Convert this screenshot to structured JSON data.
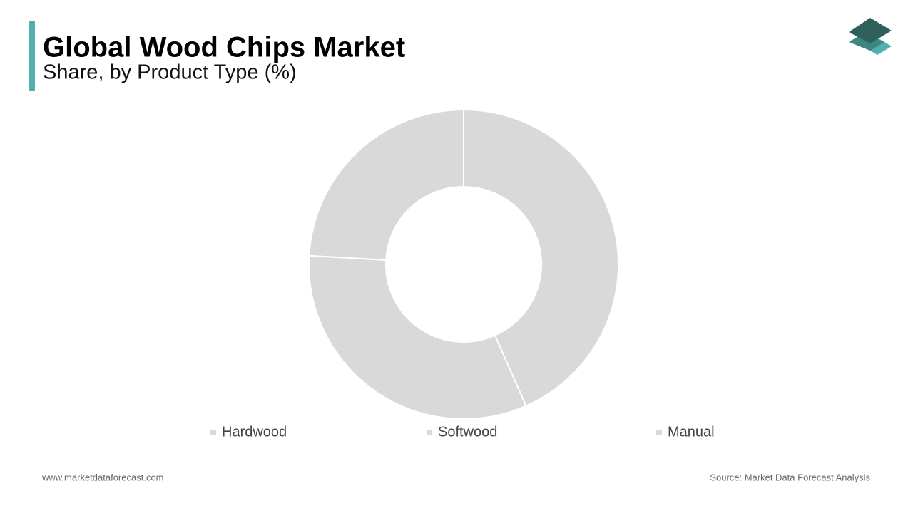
{
  "chart_data": {
    "type": "pie",
    "title": "Global Wood Chips Market",
    "subtitle": "Share, by Product Type (%)",
    "categories": [
      "Hardwood",
      "Softwood",
      "Manual"
    ],
    "values": [
      43.4,
      32.5,
      24.1
    ],
    "colors": [
      "#d9d9d9",
      "#d9d9d9",
      "#d9d9d9"
    ],
    "donut": true
  },
  "footer": {
    "website": "www.marketdataforecast.com",
    "source": "Source: Market Data Forecast Analysis"
  }
}
